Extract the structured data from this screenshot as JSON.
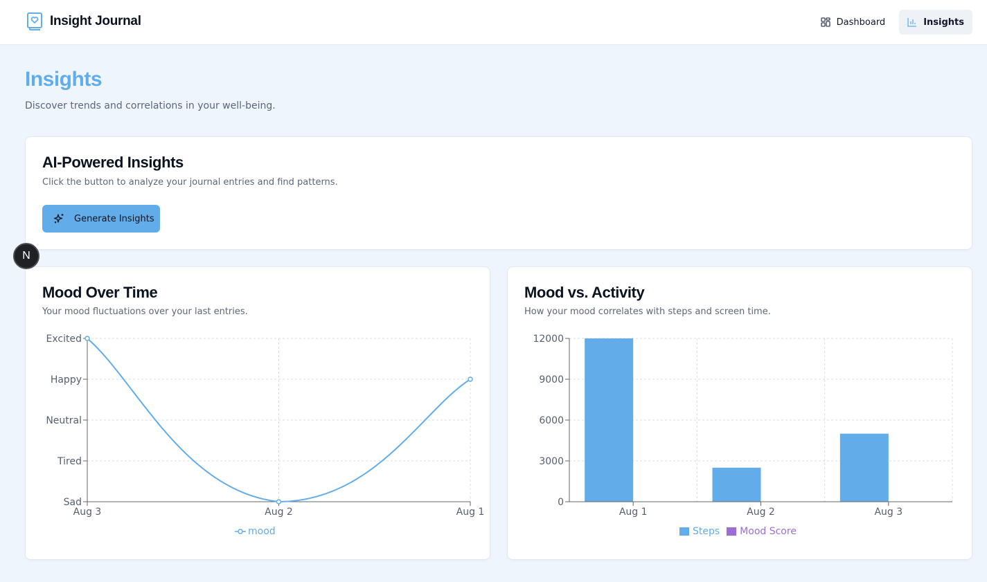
{
  "app": {
    "name": "Insight Journal",
    "brand_icon": "journal-heart-icon"
  },
  "nav": {
    "items": [
      {
        "label": "Dashboard",
        "icon": "layout-grid-icon",
        "active": false
      },
      {
        "label": "Insights",
        "icon": "bar-chart-icon",
        "active": true
      }
    ]
  },
  "page": {
    "title": "Insights",
    "subtitle": "Discover trends and correlations in your well-being."
  },
  "ai_card": {
    "title": "AI-Powered Insights",
    "description": "Click the button to analyze your journal entries and find patterns.",
    "button_label": "Generate Insights",
    "button_icon": "sparkles-icon"
  },
  "mood_card": {
    "title": "Mood Over Time",
    "description": "Your mood fluctuations over your last entries."
  },
  "activity_card": {
    "title": "Mood vs. Activity",
    "description": "How your mood correlates with steps and screen time."
  },
  "badge": {
    "label": "N"
  },
  "colors": {
    "accent": "#62ade9",
    "steps": "#62ade9",
    "mood_score": "#9b6ed6",
    "background": "#eef5fd"
  },
  "chart_data": [
    {
      "type": "line",
      "categories": [
        "Aug 3",
        "Aug 2",
        "Aug 1"
      ],
      "y_levels": [
        "Sad",
        "Tired",
        "Neutral",
        "Happy",
        "Excited"
      ],
      "series": [
        {
          "name": "mood",
          "values": [
            "Excited",
            "Sad",
            "Happy"
          ]
        }
      ],
      "grid": true,
      "legend": "bottom-center",
      "smooth": true
    },
    {
      "type": "bar",
      "categories": [
        "Aug 1",
        "Aug 2",
        "Aug 3"
      ],
      "y_ticks": [
        0,
        3000,
        6000,
        9000,
        12000
      ],
      "ylim": [
        0,
        12000
      ],
      "series": [
        {
          "name": "Steps",
          "values": [
            12000,
            2500,
            5000
          ]
        },
        {
          "name": "Mood Score",
          "values": [
            0,
            0,
            0
          ]
        }
      ],
      "grid": true,
      "legend": "bottom-center"
    }
  ]
}
